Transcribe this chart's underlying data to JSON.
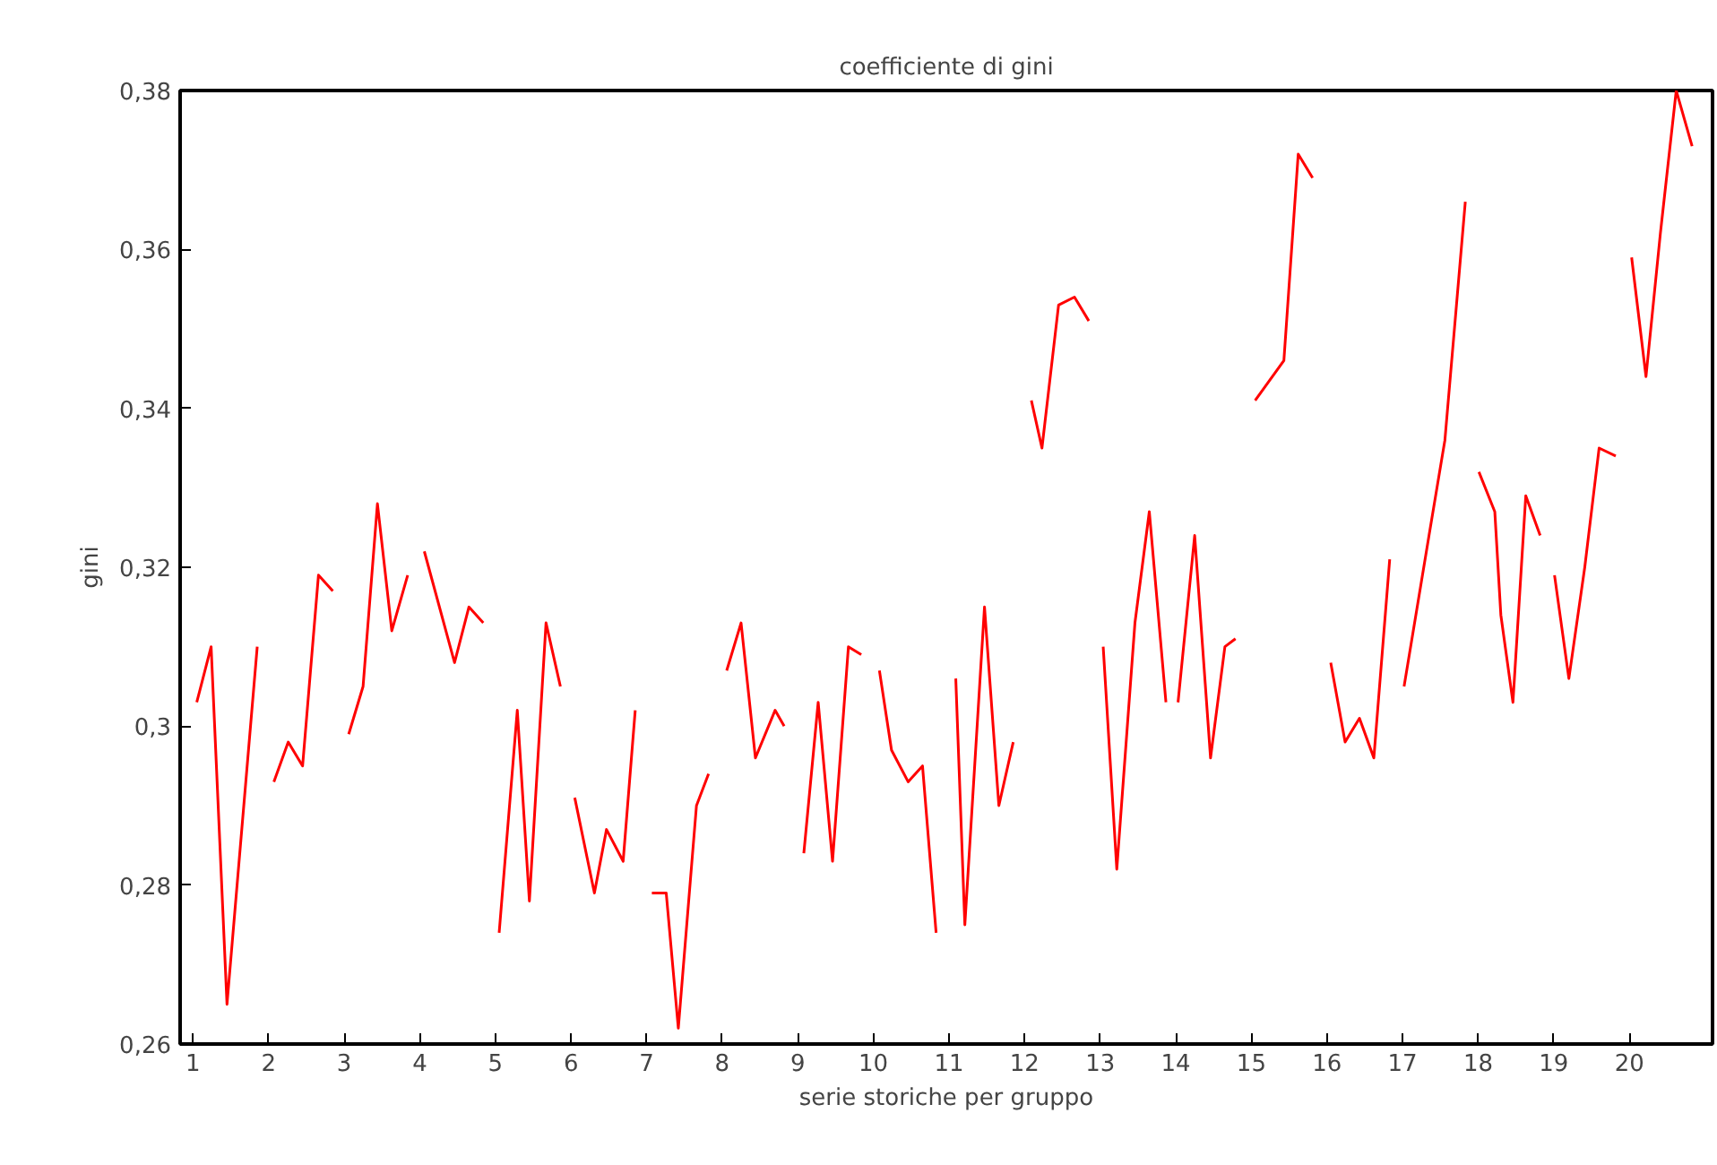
{
  "chart_data": {
    "type": "line",
    "title": "coefficiente di gini",
    "xlabel": "serie storiche per gruppo",
    "ylabel": "gini",
    "xlim": [
      0.83,
      21.1
    ],
    "xticks": [
      1,
      2,
      3,
      4,
      5,
      6,
      7,
      8,
      9,
      10,
      11,
      12,
      13,
      14,
      15,
      16,
      17,
      18,
      19,
      20
    ],
    "ylim": [
      0.26,
      0.38
    ],
    "yticks": [
      {
        "value": 0.26,
        "label": "0,26"
      },
      {
        "value": 0.28,
        "label": "0,28"
      },
      {
        "value": 0.3,
        "label": "0,3"
      },
      {
        "value": 0.32,
        "label": "0,32"
      },
      {
        "value": 0.34,
        "label": "0,34"
      },
      {
        "value": 0.36,
        "label": "0,36"
      },
      {
        "value": 0.38,
        "label": "0,38"
      }
    ],
    "grid": false,
    "marker": "none",
    "line_style": "solid",
    "series": [
      {
        "color": "#ff0000",
        "x": [
          1.05,
          1.24,
          1.45,
          1.85
        ],
        "values": [
          0.303,
          0.31,
          0.265,
          0.31
        ]
      },
      {
        "color": "#ff0000",
        "x": [
          2.07,
          2.26,
          2.45,
          2.66,
          2.85
        ],
        "values": [
          0.293,
          0.298,
          0.295,
          0.319,
          0.317
        ]
      },
      {
        "color": "#ff0000",
        "x": [
          3.06,
          3.25,
          3.44,
          3.63,
          3.84
        ],
        "values": [
          0.299,
          0.305,
          0.328,
          0.312,
          0.319
        ]
      },
      {
        "color": "#ff0000",
        "x": [
          4.06,
          4.46,
          4.65,
          4.84
        ],
        "values": [
          0.322,
          0.308,
          0.315,
          0.313
        ]
      },
      {
        "color": "#ff0000",
        "x": [
          5.05,
          5.29,
          5.45,
          5.67,
          5.86
        ],
        "values": [
          0.274,
          0.302,
          0.278,
          0.313,
          0.305
        ]
      },
      {
        "color": "#ff0000",
        "x": [
          6.05,
          6.31,
          6.47,
          6.69,
          6.85
        ],
        "values": [
          0.291,
          0.279,
          0.287,
          0.283,
          0.302
        ]
      },
      {
        "color": "#ff0000",
        "x": [
          7.07,
          7.26,
          7.42,
          7.66,
          7.82
        ],
        "values": [
          0.279,
          0.279,
          0.262,
          0.29,
          0.294
        ]
      },
      {
        "color": "#ff0000",
        "x": [
          8.06,
          8.25,
          8.44,
          8.7,
          8.82
        ],
        "values": [
          0.307,
          0.313,
          0.296,
          0.302,
          0.3
        ]
      },
      {
        "color": "#ff0000",
        "x": [
          9.08,
          9.27,
          9.46,
          9.67,
          9.84
        ],
        "values": [
          0.284,
          0.303,
          0.283,
          0.31,
          0.309
        ]
      },
      {
        "color": "#ff0000",
        "x": [
          10.08,
          10.24,
          10.46,
          10.65,
          10.83
        ],
        "values": [
          0.307,
          0.297,
          0.293,
          0.295,
          0.274
        ]
      },
      {
        "color": "#ff0000",
        "x": [
          11.09,
          11.21,
          11.47,
          11.66,
          11.85
        ],
        "values": [
          0.306,
          0.275,
          0.315,
          0.29,
          0.298
        ]
      },
      {
        "color": "#ff0000",
        "x": [
          12.09,
          12.23,
          12.45,
          12.66,
          12.85
        ],
        "values": [
          0.341,
          0.335,
          0.353,
          0.354,
          0.351
        ]
      },
      {
        "color": "#ff0000",
        "x": [
          13.04,
          13.22,
          13.46,
          13.65,
          13.87
        ],
        "values": [
          0.31,
          0.282,
          0.313,
          0.327,
          0.303
        ]
      },
      {
        "color": "#ff0000",
        "x": [
          14.03,
          14.25,
          14.46,
          14.65,
          14.79
        ],
        "values": [
          0.303,
          0.324,
          0.296,
          0.31,
          0.311
        ]
      },
      {
        "color": "#ff0000",
        "x": [
          15.05,
          15.43,
          15.62,
          15.81
        ],
        "values": [
          0.341,
          0.346,
          0.372,
          0.369
        ]
      },
      {
        "color": "#ff0000",
        "x": [
          16.05,
          16.24,
          16.43,
          16.62,
          16.83
        ],
        "values": [
          0.308,
          0.298,
          0.301,
          0.296,
          0.321
        ]
      },
      {
        "color": "#ff0000",
        "x": [
          17.02,
          17.35,
          17.56,
          17.83
        ],
        "values": [
          0.305,
          0.324,
          0.336,
          0.366
        ]
      },
      {
        "color": "#ff0000",
        "x": [
          18.01,
          18.22,
          18.3,
          18.46,
          18.63,
          18.82
        ],
        "values": [
          0.332,
          0.327,
          0.314,
          0.303,
          0.329,
          0.324
        ]
      },
      {
        "color": "#ff0000",
        "x": [
          19.01,
          19.2,
          19.41,
          19.6,
          19.82
        ],
        "values": [
          0.319,
          0.306,
          0.32,
          0.335,
          0.334
        ]
      },
      {
        "color": "#ff0000",
        "x": [
          20.03,
          20.22,
          20.41,
          20.62,
          20.83
        ],
        "values": [
          0.359,
          0.344,
          0.362,
          0.38,
          0.373
        ]
      }
    ]
  }
}
